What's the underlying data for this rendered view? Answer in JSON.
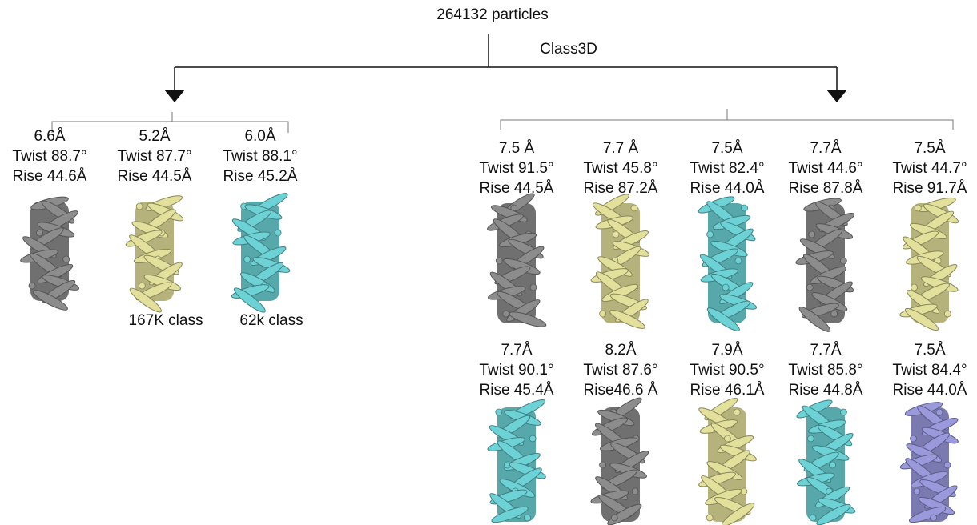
{
  "root": "264132 particles",
  "method": "Class3D",
  "left_group": {
    "classes": [
      {
        "resolution": "6.6Å",
        "twist": "Twist 88.7°",
        "rise": "Rise 44.6Å",
        "map_color": "#8c8c8c"
      },
      {
        "resolution": "5.2Å",
        "twist": "Twist 87.7°",
        "rise": "Rise 44.5Å",
        "map_color": "#e2e09a",
        "note": "167K class"
      },
      {
        "resolution": "6.0Å",
        "twist": "Twist 88.1°",
        "rise": "Rise 45.2Å",
        "map_color": "#6dd2d5",
        "note": "62k class"
      }
    ]
  },
  "right_group": {
    "rows": [
      [
        {
          "resolution": "7.5 Å",
          "twist": "Twist 91.5°",
          "rise": "Rise 44.5Å",
          "map_color": "#8c8c8c"
        },
        {
          "resolution": "7.7 Å",
          "twist": "Twist 45.8°",
          "rise": "Rise 87.2Å",
          "map_color": "#e2e09a"
        },
        {
          "resolution": "7.5Å",
          "twist": "Twist 82.4°",
          "rise": "Rise 44.0Å",
          "map_color": "#6dd2d5"
        },
        {
          "resolution": "7.7Å",
          "twist": "Twist 44.6°",
          "rise": "Rise 87.8Å",
          "map_color": "#8c8c8c"
        },
        {
          "resolution": "7.5Å",
          "twist": "Twist 44.7°",
          "rise": "Rise 91.7Å",
          "map_color": "#e2e09a"
        }
      ],
      [
        {
          "resolution": "7.7Å",
          "twist": "Twist 90.1°",
          "rise": "Rise 45.4Å",
          "map_color": "#6dd2d5"
        },
        {
          "resolution": "8.2Å",
          "twist": "Twist 87.6°",
          "rise": "Rise46.6 Å",
          "map_color": "#8c8c8c"
        },
        {
          "resolution": "7.9Å",
          "twist": "Twist 90.5°",
          "rise": "Rise 46.1Å",
          "map_color": "#e2e09a"
        },
        {
          "resolution": "7.7Å",
          "twist": "Twist 85.8°",
          "rise": "Rise 44.8Å",
          "map_color": "#6dd2d5"
        },
        {
          "resolution": "7.5Å",
          "twist": "Twist 84.4°",
          "rise": "Rise 44.0Å",
          "map_color": "#9a99dc"
        }
      ]
    ]
  }
}
